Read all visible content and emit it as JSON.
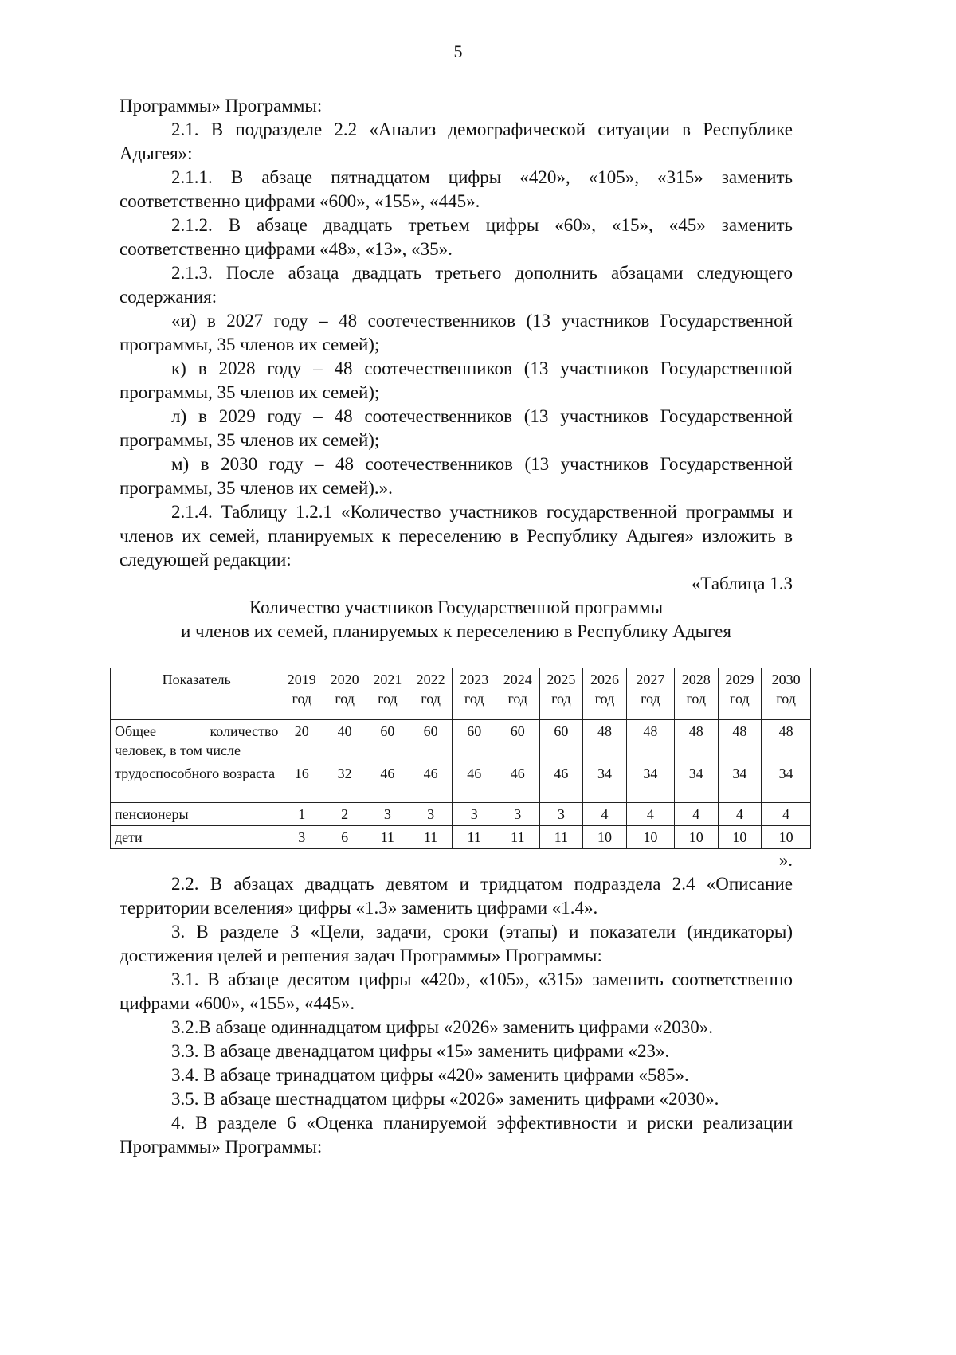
{
  "page_number": "5",
  "paragraphs_top": [
    {
      "text": "Программы» Программы:",
      "indent": false
    },
    {
      "text": "2.1. В подразделе 2.2 «Анализ демографической ситуации в Республике Адыгея»:",
      "indent": true
    },
    {
      "text": "2.1.1. В абзаце пятнадцатом цифры «420», «105», «315» заменить соответственно цифрами «600», «155», «445».",
      "indent": true
    },
    {
      "text": "2.1.2. В абзаце двадцать третьем цифры «60», «15», «45» заменить соответственно цифрами «48», «13», «35».",
      "indent": true
    },
    {
      "text": "2.1.3. После абзаца двадцать третьего дополнить абзацами следующего содержания:",
      "indent": true
    },
    {
      "text": "«и) в 2027 году – 48 соотечественников (13 участников Государственной программы, 35 членов их семей);",
      "indent": true
    },
    {
      "text": "к) в 2028 году – 48 соотечественников (13 участников Государственной программы, 35 членов их семей);",
      "indent": true
    },
    {
      "text": "л) в 2029 году – 48 соотечественников (13 участников Государственной программы, 35 членов их семей);",
      "indent": true
    },
    {
      "text": "м) в 2030 году – 48 соотечественников (13 участников Государственной программы, 35 членов их семей).».",
      "indent": true
    },
    {
      "text": "2.1.4. Таблицу 1.2.1 «Количество участников государственной программы и членов их семей, планируемых к переселению в Республику Адыгея» изложить в следующей редакции:",
      "indent": true
    }
  ],
  "table_label": "«Таблица 1.3",
  "table_title_1": "Количество участников Государственной программы",
  "table_title_2": "и членов их семей, планируемых к переселению в Республику Адыгея",
  "table": {
    "header_label": "Показатель",
    "years": [
      "2019",
      "2020",
      "2021",
      "2022",
      "2023",
      "2024",
      "2025",
      "2026",
      "2027",
      "2028",
      "2029",
      "2030"
    ],
    "year_suffix": "год",
    "rows": [
      {
        "label": "Общее количество человек, в том числе",
        "values": [
          "20",
          "40",
          "60",
          "60",
          "60",
          "60",
          "60",
          "48",
          "48",
          "48",
          "48",
          "48"
        ]
      },
      {
        "label": "трудоспособного возраста",
        "values": [
          "16",
          "32",
          "46",
          "46",
          "46",
          "46",
          "46",
          "34",
          "34",
          "34",
          "34",
          "34"
        ]
      },
      {
        "label": "пенсионеры",
        "values": [
          "1",
          "2",
          "3",
          "3",
          "3",
          "3",
          "3",
          "4",
          "4",
          "4",
          "4",
          "4"
        ]
      },
      {
        "label": "дети",
        "values": [
          "3",
          "6",
          "11",
          "11",
          "11",
          "11",
          "11",
          "10",
          "10",
          "10",
          "10",
          "10"
        ]
      }
    ]
  },
  "table_close": "».",
  "paragraphs_bottom": [
    {
      "text": "2.2. В абзацах двадцать девятом и тридцатом подраздела 2.4 «Описание территории вселения» цифры «1.3» заменить цифрами «1.4».",
      "indent": true
    },
    {
      "text": "3. В разделе 3 «Цели, задачи, сроки (этапы) и показатели (индикаторы) достижения целей и решения задач Программы» Программы:",
      "indent": true
    },
    {
      "text": "3.1. В абзаце десятом цифры «420», «105», «315» заменить соответственно цифрами «600», «155», «445».",
      "indent": true
    },
    {
      "text": "3.2.В абзаце одиннадцатом цифры «2026» заменить цифрами «2030».",
      "indent": true
    },
    {
      "text": "3.3. В абзаце двенадцатом цифры «15» заменить цифрами «23».",
      "indent": true
    },
    {
      "text": "3.4. В абзаце тринадцатом цифры «420» заменить цифрами «585».",
      "indent": true
    },
    {
      "text": "3.5. В абзаце шестнадцатом цифры «2026» заменить цифрами «2030».",
      "indent": true
    },
    {
      "text": "4. В разделе 6 «Оценка планируемой эффективности и риски реализации Программы» Программы:",
      "indent": true
    }
  ]
}
